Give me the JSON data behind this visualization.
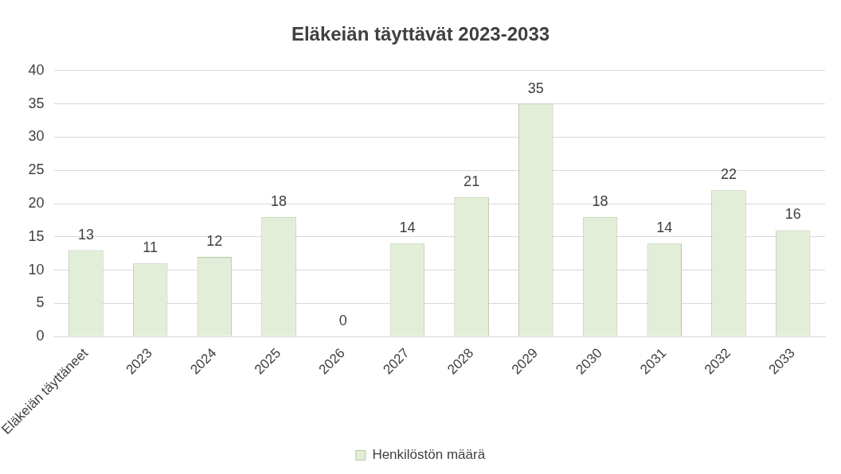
{
  "chart_data": {
    "type": "bar",
    "title": "Eläkeiän täyttävät 2023-2033",
    "categories": [
      "Eläkeiän täyttäneet",
      "2023",
      "2024",
      "2025",
      "2026",
      "2027",
      "2028",
      "2029",
      "2030",
      "2031",
      "2032",
      "2033"
    ],
    "series": [
      {
        "name": "Henkilöstön määrä",
        "color": "#e2eed8",
        "values": [
          13,
          11,
          12,
          18,
          0,
          14,
          21,
          35,
          18,
          14,
          22,
          16
        ]
      }
    ],
    "ylim": [
      0,
      40
    ],
    "yticks": [
      0,
      5,
      10,
      15,
      20,
      25,
      30,
      35,
      40
    ],
    "grid": "y",
    "legend": "bottom",
    "data_labels": true
  }
}
